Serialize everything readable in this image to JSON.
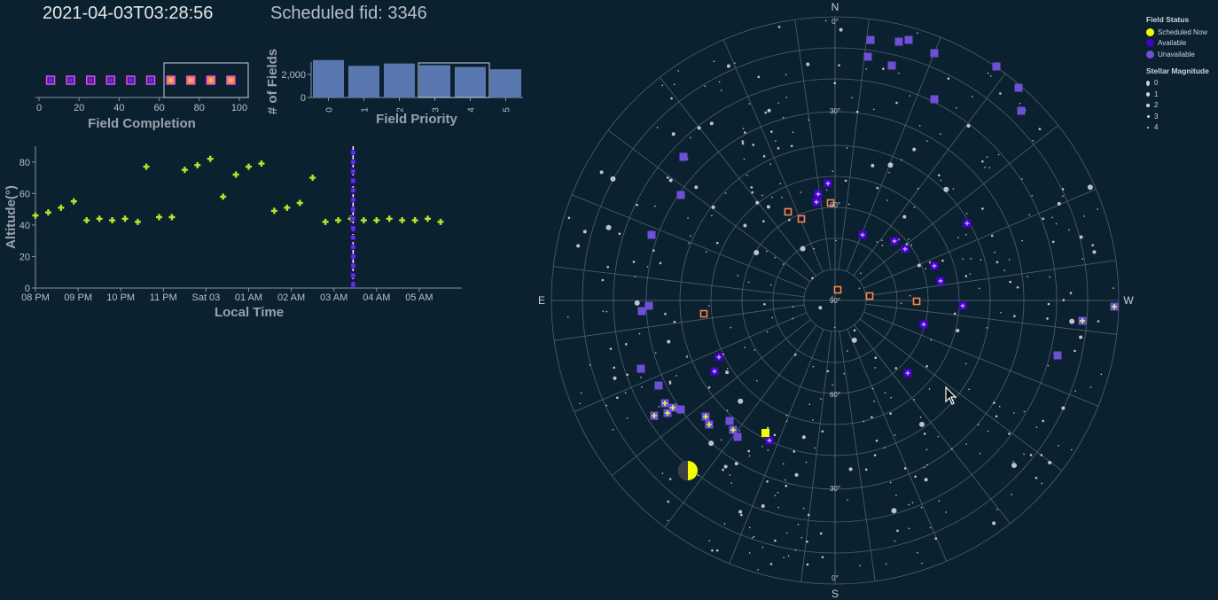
{
  "header": {
    "timestamp": "2021-04-03T03:28:56",
    "scheduled_fid": "Scheduled fid: 3346"
  },
  "colors": {
    "background": "#0b2130",
    "scheduled_now": "#f2ff00",
    "available": "#4400cc",
    "unavailable": "#6f4fd6",
    "bar_fill": "#5a78b0",
    "altitude_marker": "#b6e52a",
    "completion_marker_fill": "#f28f3b",
    "completion_marker_stroke": "#e64fd6"
  },
  "field_completion": {
    "xlabel": "Field Completion",
    "ticks": [
      "0",
      "20",
      "40",
      "60",
      "80",
      "100"
    ],
    "values": [
      4,
      14,
      24,
      34,
      44,
      54,
      64,
      74,
      84,
      94
    ],
    "brush": [
      60,
      100
    ]
  },
  "field_priority": {
    "ylabel": "# of Fields",
    "xlabel": "Field Priority",
    "categories": [
      "0",
      "1",
      "2",
      "3",
      "4",
      "5"
    ],
    "values": [
      3250,
      2750,
      2950,
      2800,
      2650,
      2450
    ],
    "yticks": [
      "0",
      "2,000"
    ],
    "brush": [
      "3",
      "4"
    ]
  },
  "altitude_chart": {
    "ylabel": "Altitude(°)",
    "xlabel": "Local Time",
    "yticks": [
      "0",
      "20",
      "40",
      "60",
      "80"
    ],
    "xticks": [
      "08 PM",
      "09 PM",
      "10 PM",
      "11 PM",
      "Sat 03",
      "01 AM",
      "02 AM",
      "03 AM",
      "04 AM",
      "05 AM"
    ],
    "points_hours": [
      0.0,
      0.3,
      0.6,
      0.9,
      1.2,
      1.5,
      1.8,
      2.1,
      2.4,
      2.6,
      2.9,
      3.2,
      3.5,
      3.8,
      4.1,
      4.4,
      4.7,
      5.0,
      5.3,
      5.6,
      5.9,
      6.2,
      6.5,
      6.8,
      7.1,
      7.4,
      7.7,
      8.0,
      8.3,
      8.6,
      8.9,
      9.2,
      9.5
    ],
    "points_alt": [
      46,
      48,
      51,
      55,
      43,
      44,
      43,
      44,
      42,
      77,
      45,
      45,
      75,
      78,
      82,
      58,
      72,
      77,
      79,
      49,
      51,
      54,
      70,
      42,
      43,
      44,
      43,
      43,
      44,
      43,
      43,
      44,
      42
    ],
    "now_hours": 7.45
  },
  "sky_map": {
    "compass": {
      "n": "N",
      "s": "S",
      "e": "E",
      "w": "W"
    },
    "alt_labels": [
      "0°",
      "30°",
      "60°",
      "90°",
      "60°",
      "30°",
      "0°"
    ],
    "moon": "moon-icon"
  },
  "legend": {
    "status_title": "Field Status",
    "status_items": [
      {
        "label": "Scheduled Now",
        "color": "#f2ff00"
      },
      {
        "label": "Available",
        "color": "#4400cc"
      },
      {
        "label": "Unavailable",
        "color": "#6f4fd6"
      }
    ],
    "mag_title": "Stellar Magnitude",
    "mag_items": [
      "0",
      "1",
      "2",
      "3",
      "4"
    ]
  }
}
